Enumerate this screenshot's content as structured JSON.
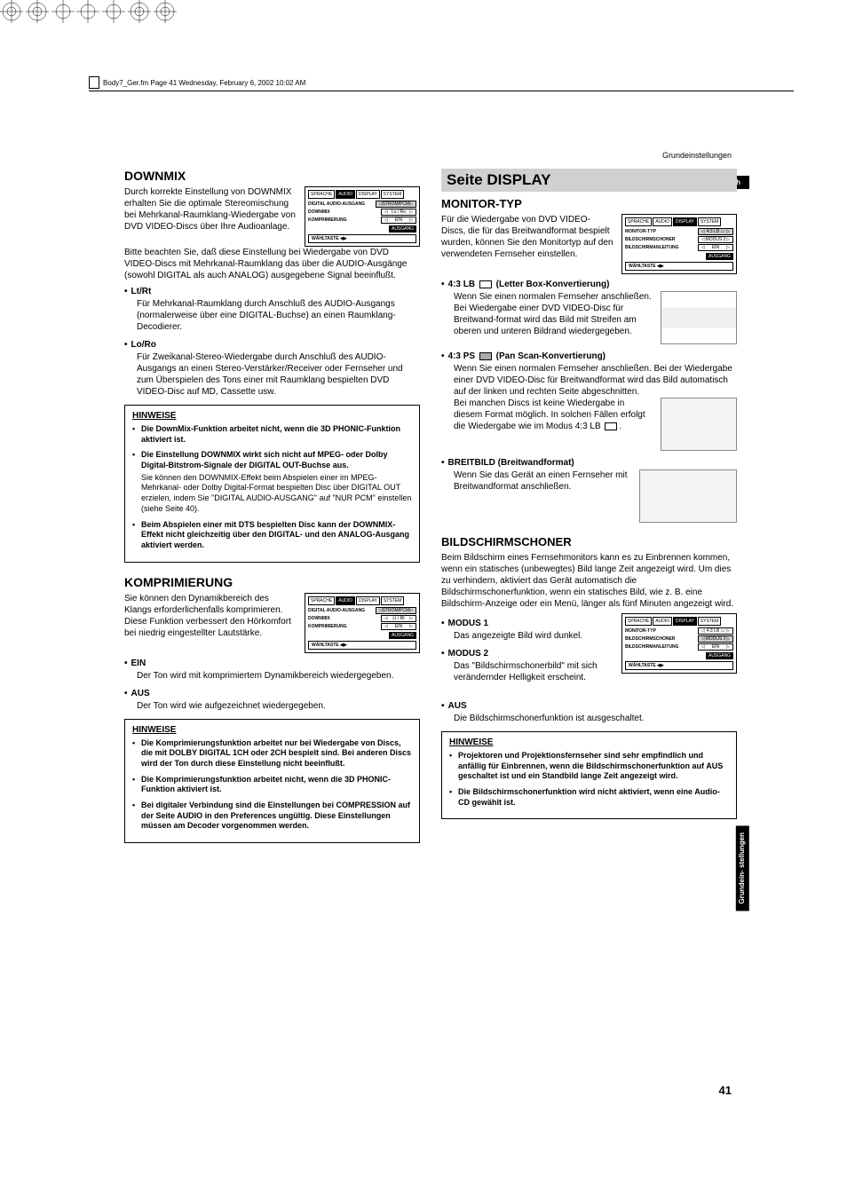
{
  "header_text": "Body7_Ger.fm  Page 41  Wednesday, February 6, 2002  10:02 AM",
  "running_head": "Grundeinstellungen",
  "lang_tab": "Deutsch",
  "side_tab": "Grundein-\nstellungen",
  "page_num": "41",
  "menu_audio": {
    "tabs": [
      "SPRACHE",
      "AUDIO",
      "DISPLAY",
      "SYSTEM"
    ],
    "active_tab": 1,
    "rows": [
      {
        "lbl": "DIGITAL AUDIO-AUSGANG",
        "val": "STROM/PCM",
        "hl": true
      },
      {
        "lbl": "DOWNMIX",
        "val": "Lo / Ro"
      },
      {
        "lbl": "KOMPRIMIERUNG",
        "val": "EIN"
      }
    ],
    "exit": "AUSGANG",
    "foot": "WÄHLTASTE  ◀▶"
  },
  "menu_audio2": {
    "tabs": [
      "SPRACHE",
      "AUDIO",
      "DISPLAY",
      "SYSTEM"
    ],
    "active_tab": 1,
    "rows": [
      {
        "lbl": "DIGITAL AUDIO-AUSGANG",
        "val": "STROM/PCM",
        "hl": true
      },
      {
        "lbl": "DOWNMIX",
        "val": "Lt / Rt"
      },
      {
        "lbl": "KOMPRIMIERUNG",
        "val": "EIN"
      }
    ],
    "exit": "AUSGANG",
    "foot": "WÄHLTASTE  ◀▶"
  },
  "menu_display1": {
    "tabs": [
      "SPRACHE",
      "AUDIO",
      "DISPLAY",
      "SYSTEM"
    ],
    "active_tab": 2,
    "rows": [
      {
        "lbl": "MONITOR-TYP",
        "val": "4:3 LB ▭",
        "hl": true
      },
      {
        "lbl": "BILDSCHIRMSCHONER",
        "val": "MODUS 2"
      },
      {
        "lbl": "BILDSCHIRMANLEITUNG",
        "val": "EIN"
      }
    ],
    "exit": "AUSGANG",
    "foot": "WÄHLTASTE  ◀▶"
  },
  "menu_display2": {
    "tabs": [
      "SPRACHE",
      "AUDIO",
      "DISPLAY",
      "SYSTEM"
    ],
    "active_tab": 2,
    "rows": [
      {
        "lbl": "MONITOR-TYP",
        "val": "4:3 LB ▭"
      },
      {
        "lbl": "BILDSCHIRMSCHONER",
        "val": "MODUS 2",
        "hl": true
      },
      {
        "lbl": "BILDSCHIRMANLEITUNG",
        "val": "EIN"
      }
    ],
    "exit": "AUSGANG",
    "foot": "WÄHLTASTE  ◀▶"
  },
  "downmix": {
    "title": "DOWNMIX",
    "intro": "Durch korrekte Einstellung von DOWNMIX erhalten Sie die optimale Stereomischung bei Mehrkanal-Raumklang-Wiedergabe von DVD VIDEO-Discs über Ihre Audioanlage.",
    "note": "Bitte beachten Sie, daß diese Einstellung bei Wiedergabe von DVD VIDEO-Discs mit Mehrkanal-Raumklang das über die AUDIO-Ausgänge (sowohl DIGITAL als auch ANALOG) ausgegebene Signal beeinflußt.",
    "opt1_h": "Lt/Rt",
    "opt1_b": "Für Mehrkanal-Raumklang durch Anschluß des AUDIO-Ausgangs (normalerweise über eine DIGITAL-Buchse) an einen Raumklang-Decodierer.",
    "opt2_h": "Lo/Ro",
    "opt2_b": "Für Zweikanal-Stereo-Wiedergabe durch Anschluß des AUDIO-Ausgangs an einen Stereo-Verstärker/Receiver oder Fernseher und zum Überspielen des Tons einer mit Raumklang bespielten DVD VIDEO-Disc auf MD, Cassette usw.",
    "hw_title": "HINWEISE",
    "hw1": "Die DownMix-Funktion arbeitet nicht, wenn die 3D PHONIC-Funktion aktiviert ist.",
    "hw2": "Die Einstellung DOWNMIX wirkt sich nicht auf MPEG- oder Dolby Digital-Bitstrom-Signale der DIGITAL OUT-Buchse aus.",
    "hw2b": "Sie können den DOWNMIX-Effekt beim Abspielen einer im MPEG-Mehrkanal- oder Dolby Digital-Format bespielten Disc über DIGITAL OUT erzielen, indem Sie \"DIGITAL AUDIO-AUSGANG\" auf \"NUR PCM\" einstellen (siehe Seite 40).",
    "hw3": "Beim Abspielen einer mit DTS bespielten Disc kann der DOWNMIX-Effekt nicht gleichzeitig über den DIGITAL- und den ANALOG-Ausgang aktiviert werden."
  },
  "kompr": {
    "title": "KOMPRIMIERUNG",
    "intro": "Sie können den Dynamikbereich des Klangs erforderlichenfalls komprimieren. Diese Funktion verbessert den Hörkomfort bei niedrig eingestellter Lautstärke.",
    "opt1_h": "EIN",
    "opt1_b": "Der Ton wird mit komprimiertem Dynamikbereich wiedergegeben.",
    "opt2_h": "AUS",
    "opt2_b": "Der Ton wird wie aufgezeichnet wiedergegeben.",
    "hw_title": "HINWEISE",
    "hw1": "Die Komprimierungsfunktion arbeitet nur bei Wiedergabe von Discs, die mit DOLBY DIGITAL 1CH oder 2CH bespielt sind. Bei anderen Discs wird der Ton durch diese Einstellung nicht beeinflußt.",
    "hw2": "Die Komprimierungsfunktion arbeitet nicht, wenn die 3D PHONIC-Funktion aktiviert ist.",
    "hw3": "Bei digitaler Verbindung sind die Einstellungen bei COMPRESSION auf der Seite AUDIO in den Preferences ungültig. Diese Einstellungen müssen am Decoder vorgenommen werden."
  },
  "display_page": {
    "title": "Seite DISPLAY"
  },
  "monitor": {
    "title": "MONITOR-TYP",
    "intro": "Für die Wiedergabe von DVD VIDEO-Discs, die für das Breitwandformat bespielt wurden, können Sie den Monitortyp auf den verwendeten Fernseher einstellen.",
    "opt1_pre": "4:3 LB",
    "opt1_suf": "(Letter Box-Konvertierung)",
    "opt1_b": "Wenn Sie einen normalen Fernseher anschließen. Bei Wiedergabe einer DVD VIDEO-Disc für Breitwand-format wird das Bild mit Streifen am oberen und unteren Bildrand wiedergegeben.",
    "opt2_pre": "4:3 PS",
    "opt2_suf": "(Pan Scan-Konvertierung)",
    "opt2_b1": "Wenn Sie einen normalen Fernseher anschließen. Bei der Wiedergabe einer DVD VIDEO-Disc für Breitwandformat wird das Bild automatisch auf der linken und rechten Seite abgeschnitten.",
    "opt2_b2a": "Bei manchen Discs ist keine Wiedergabe in diesem Format möglich. In solchen Fällen erfolgt die Wiedergabe wie im Modus 4:3 LB",
    "opt2_b2b": ".",
    "opt3_h": "BREITBILD (Breitwandformat)",
    "opt3_b": "Wenn Sie das Gerät an einen Fernseher mit Breitwandformat anschließen."
  },
  "schoner": {
    "title": "BILDSCHIRMSCHONER",
    "intro": "Beim Bildschirm eines Fernsehmonitors kann es zu Einbrennen kommen, wenn ein statisches (unbewegtes) Bild lange Zeit angezeigt wird. Um dies zu verhindern, aktiviert das Gerät automatisch die Bildschirmschonerfunktion, wenn ein statisches Bild, wie z. B. eine Bildschirm-Anzeige oder ein Menü, länger als fünf Minuten angezeigt wird.",
    "opt1_h": "MODUS 1",
    "opt1_b": "Das angezeigte Bild wird dunkel.",
    "opt2_h": "MODUS 2",
    "opt2_b": "Das \"Bildschirmschonerbild\" mit sich verändernder Helligkeit erscheint.",
    "opt3_h": "AUS",
    "opt3_b": "Die Bildschirmschonerfunktion ist ausgeschaltet.",
    "hw_title": "HINWEISE",
    "hw1": "Projektoren und Projektionsfernseher sind sehr empfindlich und anfällig für Einbrennen, wenn die Bildschirmschonerfunktion auf AUS geschaltet ist und ein Standbild lange Zeit angezeigt wird.",
    "hw2": "Die Bildschirmschonerfunktion wird nicht aktiviert, wenn eine Audio-CD gewählt ist."
  }
}
